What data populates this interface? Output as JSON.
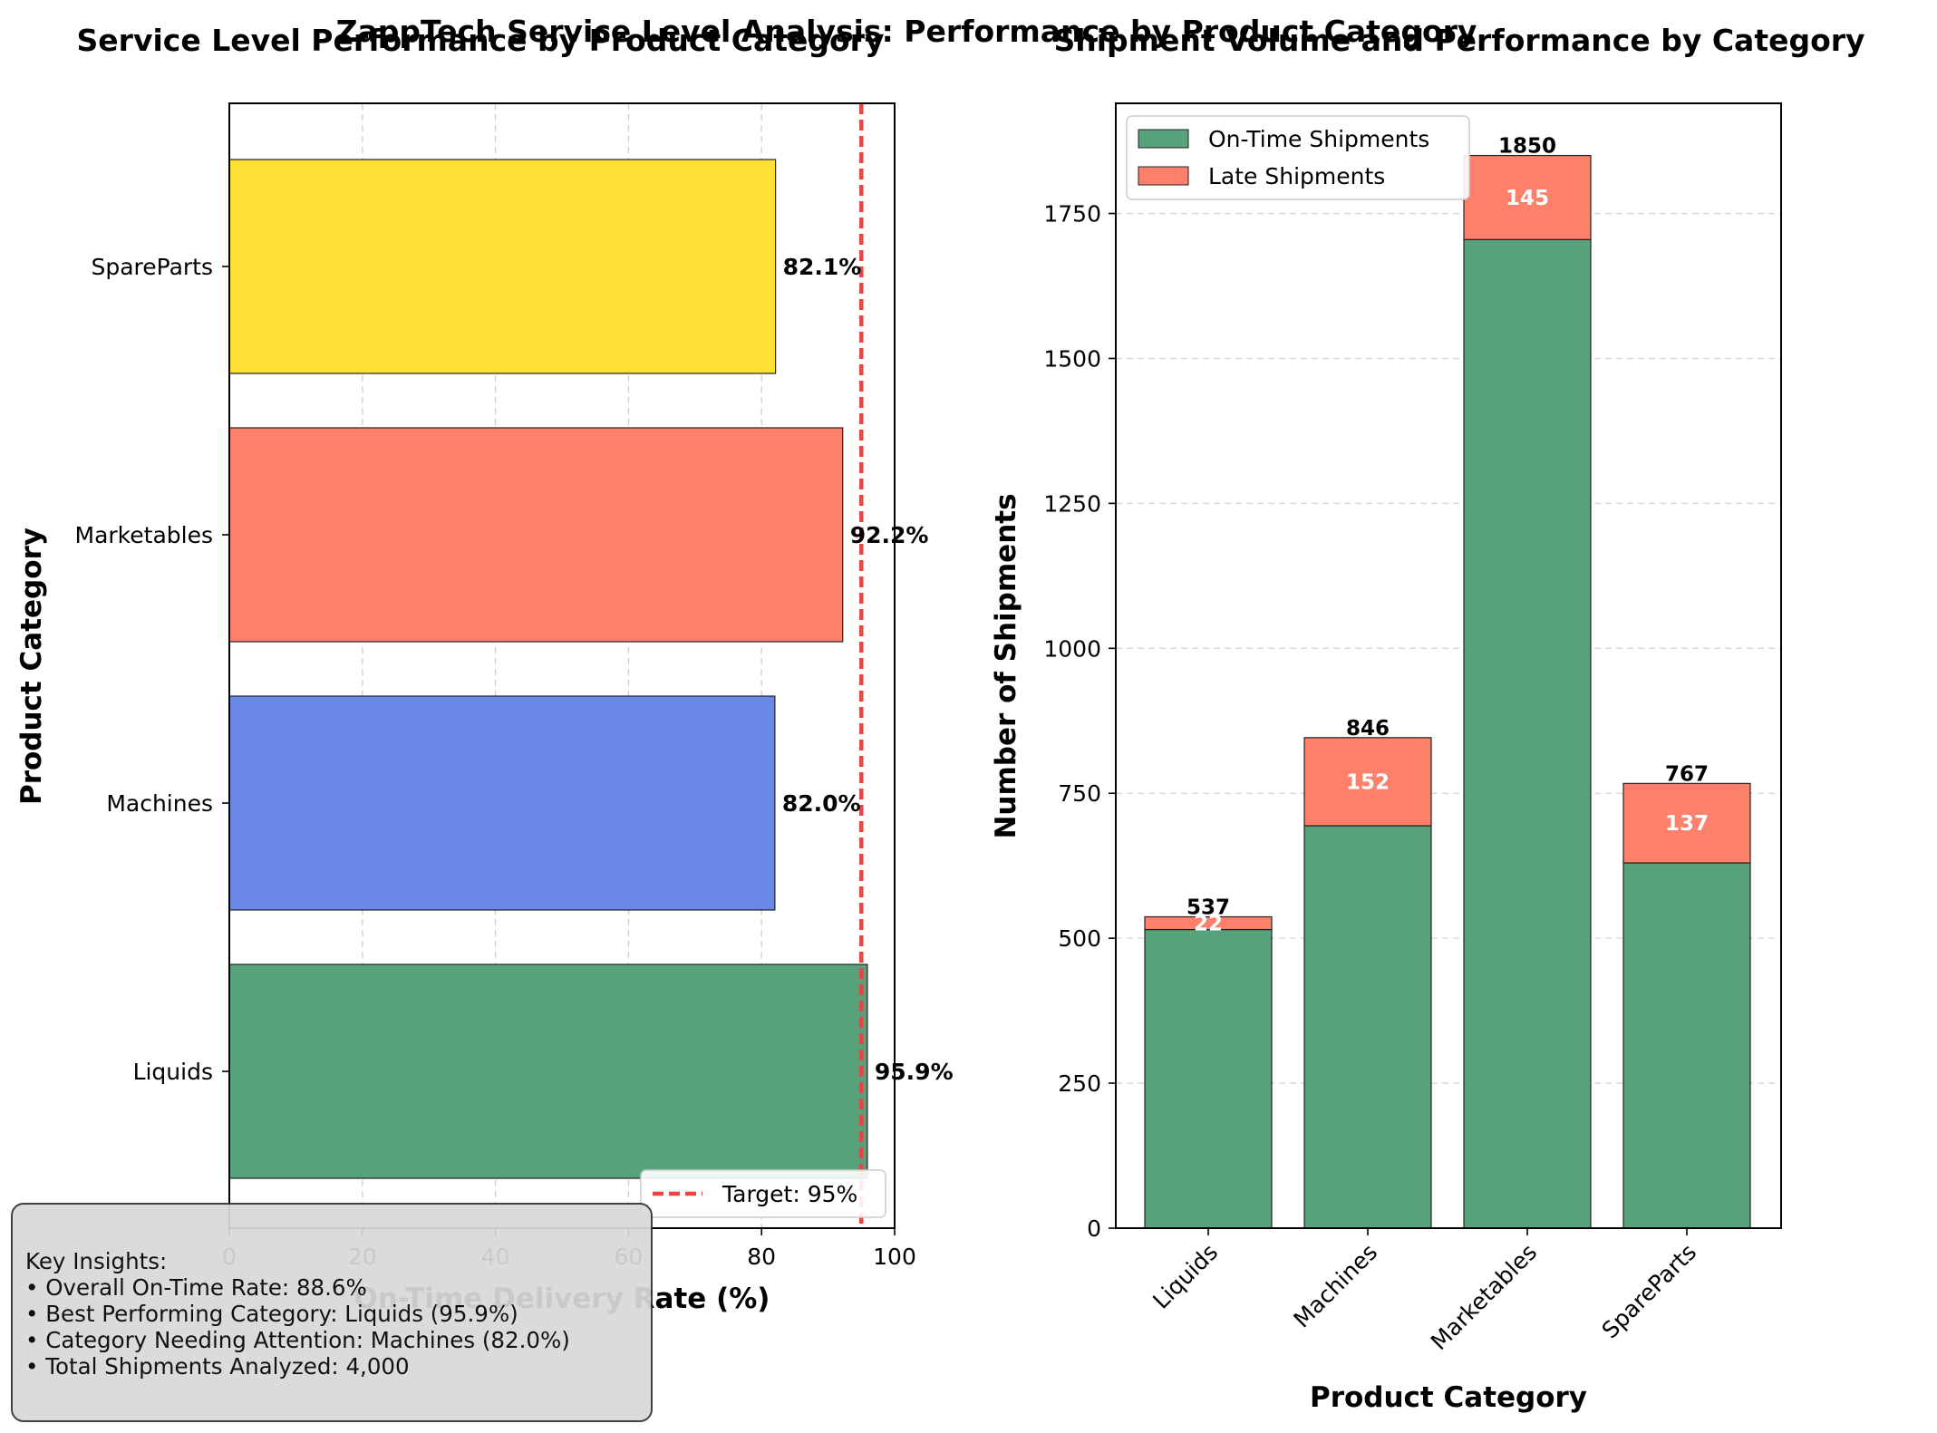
{
  "figure": {
    "suptitle": "ZappTech Service Level Analysis: Performance by Product Category"
  },
  "left_chart": {
    "title": "Service Level Performance by Product Category",
    "xlabel": "On-Time Delivery Rate (%)",
    "ylabel": "Product Category",
    "target_label": "Target: 95%"
  },
  "right_chart": {
    "title": "Shipment Volume and Performance by Category",
    "xlabel": "Product Category",
    "ylabel": "Number of Shipments",
    "legend": [
      "On-Time Shipments",
      "Late Shipments"
    ]
  },
  "insights": {
    "heading": "Key Insights:",
    "lines": [
      "• Overall On-Time Rate: 88.6%",
      "• Best Performing Category: Liquids (95.9%)",
      "• Category Needing Attention: Machines (82.0%)",
      "• Total Shipments Analyzed: 4,000"
    ]
  },
  "chart_data": [
    {
      "type": "bar",
      "orientation": "horizontal",
      "title": "Service Level Performance by Product Category",
      "xlabel": "On-Time Delivery Rate (%)",
      "ylabel": "Product Category",
      "categories": [
        "Liquids",
        "Machines",
        "Marketables",
        "SpareParts"
      ],
      "values": [
        95.9,
        82.0,
        92.2,
        82.1
      ],
      "value_labels": [
        "95.9%",
        "82.0%",
        "92.2%",
        "82.1%"
      ],
      "colors": [
        "#57a27b",
        "#6a88e5",
        "#fd806b",
        "#fedf33"
      ],
      "xlim": [
        0,
        100
      ],
      "xticks": [
        0,
        20,
        40,
        60,
        80,
        100
      ],
      "target": 95,
      "target_color": "#e84545",
      "grid": true,
      "legend_position": "lower-right"
    },
    {
      "type": "bar",
      "stacked": true,
      "title": "Shipment Volume and Performance by Category",
      "xlabel": "Product Category",
      "ylabel": "Number of Shipments",
      "categories": [
        "Liquids",
        "Machines",
        "Marketables",
        "SpareParts"
      ],
      "series": [
        {
          "name": "On-Time Shipments",
          "values": [
            515,
            694,
            1705,
            630
          ],
          "color": "#57a27b"
        },
        {
          "name": "Late Shipments",
          "values": [
            22,
            152,
            145,
            137
          ],
          "color": "#fd806b"
        }
      ],
      "totals": [
        537,
        846,
        1850,
        767
      ],
      "ylim": [
        0,
        1940
      ],
      "yticks": [
        0,
        250,
        500,
        750,
        1000,
        1250,
        1500,
        1750
      ],
      "grid": true,
      "legend_position": "top-left"
    }
  ]
}
